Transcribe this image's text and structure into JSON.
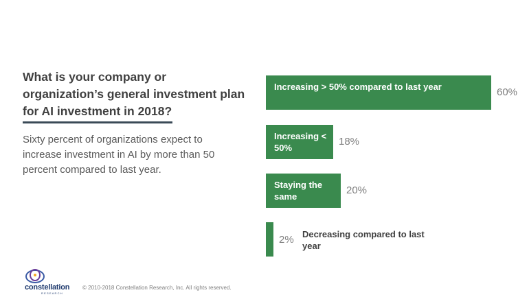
{
  "question": "What is your company or organization’s general investment plan for AI investment in 2018?",
  "summary": "Sixty percent of organizations expect to increase investment in AI by more than 50 percent compared to last year.",
  "footer": {
    "copyright": "© 2010-2018 Constellation Research, Inc. All rights reserved.",
    "logo_name": "constellation",
    "logo_sub": "RESEARCH"
  },
  "colors": {
    "bar": "#3a8a4e",
    "divider": "#3a4a57",
    "text": "#404040",
    "value": "#7f7f7f"
  },
  "chart_data": {
    "type": "bar",
    "orientation": "horizontal",
    "title": "What is your company or organization’s general investment plan for AI investment in 2018?",
    "categories": [
      "Increasing > 50% compared to last year",
      "Increasing < 50%",
      "Staying the same",
      "Decreasing compared to last year"
    ],
    "values": [
      60,
      18,
      20,
      2
    ],
    "value_labels": [
      "60%",
      "18%",
      "20%",
      "2%"
    ],
    "unit": "%",
    "xlim": [
      0,
      60
    ]
  }
}
